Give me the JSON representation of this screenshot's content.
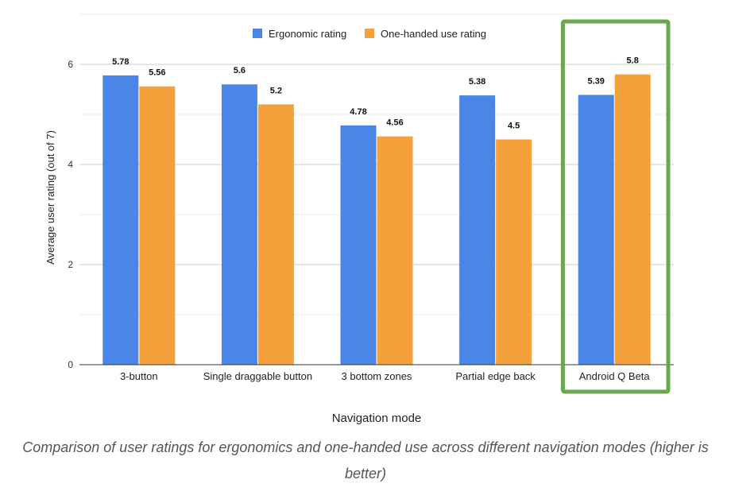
{
  "chart_data": {
    "type": "bar",
    "categories": [
      "3-button",
      "Single draggable button",
      "3 bottom zones",
      "Partial edge back",
      "Android Q Beta"
    ],
    "series": [
      {
        "name": "Ergonomic rating",
        "values": [
          5.78,
          5.6,
          4.78,
          5.38,
          5.39
        ],
        "labels": [
          "5.78",
          "5.6",
          "4.78",
          "5.38",
          "5.39"
        ],
        "color": "#4a86e8"
      },
      {
        "name": "One-handed use rating",
        "values": [
          5.56,
          5.2,
          4.56,
          4.5,
          5.8
        ],
        "labels": [
          "5.56",
          "5.2",
          "4.56",
          "4.5",
          "5.8"
        ],
        "color": "#f4a13b"
      }
    ],
    "ylim": [
      0,
      7
    ],
    "yticks": [
      0,
      2,
      4,
      6
    ],
    "xlabel": "Navigation mode",
    "ylabel": "Average user rating (out of 7)",
    "grid": true,
    "legend_position": "top-center",
    "highlighted_category": "Android Q Beta",
    "highlight_color": "#6aa84f"
  },
  "caption": "Comparison of user ratings for ergonomics and one-handed use across different navigation modes (higher is better)"
}
